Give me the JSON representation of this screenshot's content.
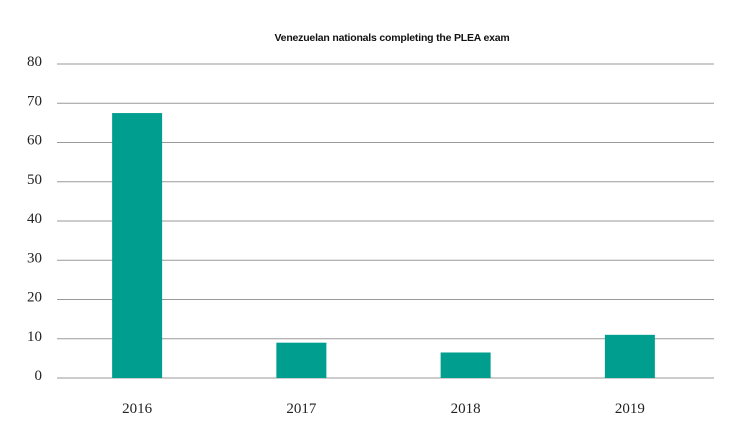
{
  "chart_data": {
    "type": "bar",
    "title": "Venezuelan nationals completing the PLEA exam",
    "xlabel": "",
    "ylabel": "",
    "categories": [
      "2016",
      "2017",
      "2018",
      "2019"
    ],
    "values": [
      67.5,
      9,
      6.5,
      11
    ],
    "ylim": [
      0,
      80
    ],
    "yticks": [
      0,
      10,
      20,
      30,
      40,
      50,
      60,
      70,
      80
    ],
    "grid": true,
    "legend": "none",
    "bar_color": "#009E8E"
  }
}
